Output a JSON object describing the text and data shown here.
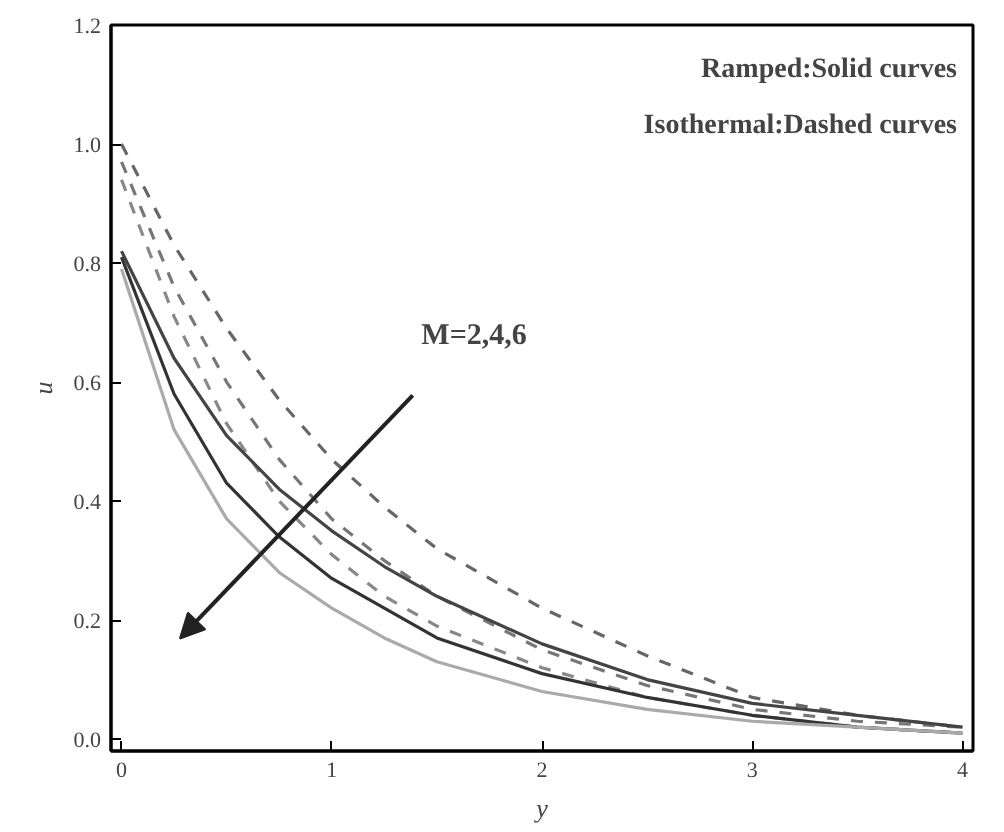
{
  "chart_data": {
    "type": "line",
    "xlabel": "y",
    "ylabel": "u",
    "x": [
      0,
      0.25,
      0.5,
      0.75,
      1,
      1.25,
      1.5,
      2,
      2.5,
      3,
      3.5,
      4
    ],
    "series": [
      {
        "color": "#666666",
        "line_style": "dashed",
        "values": [
          1.0,
          0.83,
          0.69,
          0.57,
          0.47,
          0.39,
          0.32,
          0.22,
          0.14,
          0.07,
          0.04,
          0.02
        ]
      },
      {
        "color": "#777777",
        "line_style": "dashed",
        "values": [
          0.97,
          0.76,
          0.6,
          0.47,
          0.37,
          0.3,
          0.24,
          0.15,
          0.09,
          0.05,
          0.03,
          0.02
        ]
      },
      {
        "color": "#888888",
        "line_style": "dashed",
        "values": [
          0.94,
          0.71,
          0.53,
          0.4,
          0.31,
          0.24,
          0.19,
          0.12,
          0.07,
          0.04,
          0.02,
          0.01
        ]
      },
      {
        "color": "#444444",
        "line_style": "solid",
        "values": [
          0.82,
          0.64,
          0.51,
          0.42,
          0.35,
          0.29,
          0.24,
          0.16,
          0.1,
          0.06,
          0.04,
          0.02
        ]
      },
      {
        "color": "#333333",
        "line_style": "solid",
        "values": [
          0.81,
          0.58,
          0.43,
          0.34,
          0.27,
          0.22,
          0.17,
          0.11,
          0.07,
          0.04,
          0.02,
          0.01
        ]
      },
      {
        "color": "#aaaaaa",
        "line_style": "solid",
        "values": [
          0.79,
          0.52,
          0.37,
          0.28,
          0.22,
          0.17,
          0.13,
          0.08,
          0.05,
          0.03,
          0.02,
          0.01
        ]
      }
    ],
    "xlim": [
      -0.05,
      4.05
    ],
    "ylim": [
      -0.02,
      1.2
    ],
    "xticks": [
      0,
      1,
      2,
      3,
      4
    ],
    "yticks": [
      {
        "value": 0,
        "label": "0.0"
      },
      {
        "value": 0.2,
        "label": "0.2"
      },
      {
        "value": 0.4,
        "label": "0.4"
      },
      {
        "value": 0.6,
        "label": "0.6"
      },
      {
        "value": 0.8,
        "label": "0.8"
      },
      {
        "value": 1.0,
        "label": "1.0"
      },
      {
        "value": 1.2,
        "label": "1.2"
      }
    ],
    "annotations": [
      "Ramped:Solid curves",
      "Isothermal:Dashed curves",
      "M=2,4,6"
    ],
    "grid": false
  }
}
